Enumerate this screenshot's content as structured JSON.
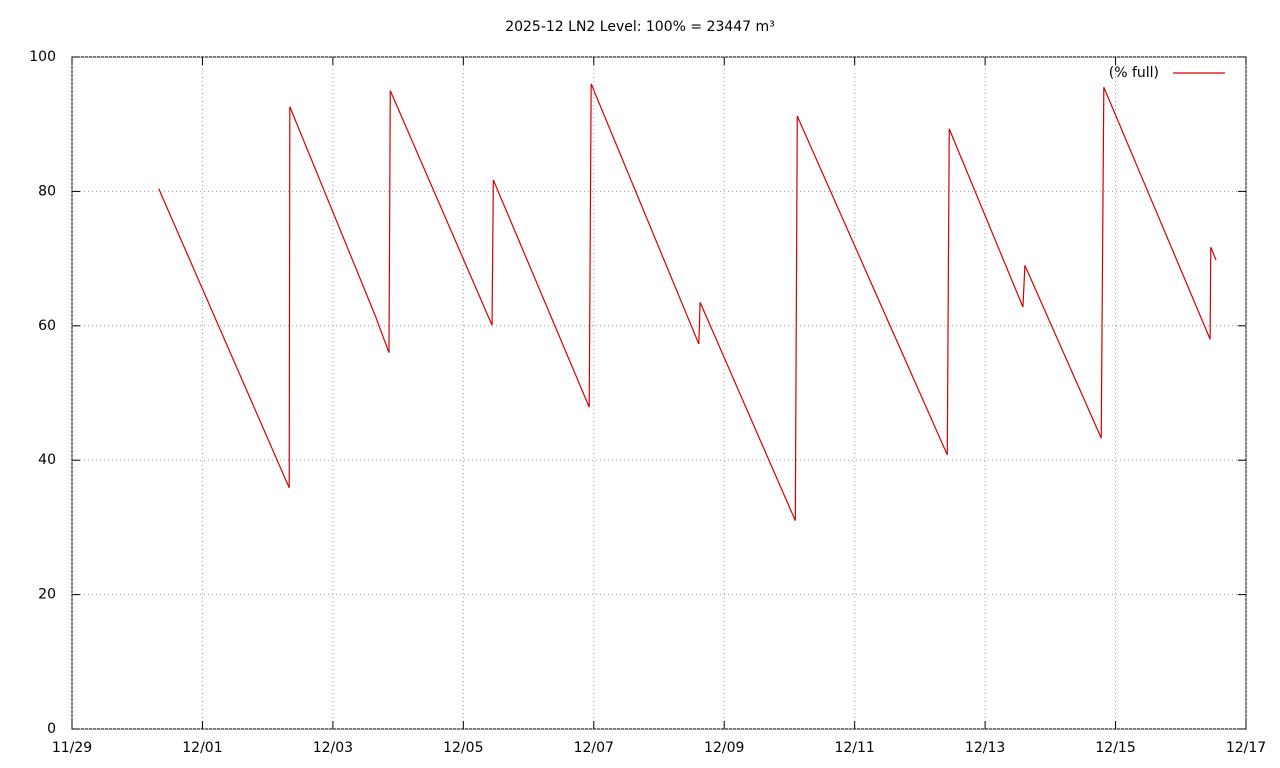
{
  "chart_data": {
    "type": "line",
    "title": "2025-12 LN2 Level: 100% = 23447 m³",
    "xlim": [
      0,
      18
    ],
    "xticks": [
      {
        "value": 0,
        "label": "11/29"
      },
      {
        "value": 2,
        "label": "12/01"
      },
      {
        "value": 4,
        "label": "12/03"
      },
      {
        "value": 6,
        "label": "12/05"
      },
      {
        "value": 8,
        "label": "12/07"
      },
      {
        "value": 10,
        "label": "12/09"
      },
      {
        "value": 12,
        "label": "12/11"
      },
      {
        "value": 14,
        "label": "12/13"
      },
      {
        "value": 16,
        "label": "12/15"
      },
      {
        "value": 18,
        "label": "12/17"
      }
    ],
    "ylim": [
      0,
      100
    ],
    "yticks": [
      0,
      20,
      40,
      60,
      80,
      100
    ],
    "grid": true,
    "legend": "upper right",
    "series": [
      {
        "name": "(% full)",
        "color": "#d40000",
        "x": [
          1.33,
          3.33,
          3.34,
          4.65,
          4.86,
          4.88,
          6.44,
          6.46,
          7.93,
          7.96,
          9.61,
          9.63,
          11.09,
          11.12,
          13.42,
          13.45,
          14.58,
          14.61,
          15.78,
          15.82,
          17.45,
          17.46,
          17.54
        ],
        "values": [
          80.4,
          35.9,
          92.6,
          61.5,
          56.0,
          95.0,
          60.1,
          81.7,
          47.9,
          96.0,
          57.3,
          63.5,
          31.0,
          91.2,
          40.8,
          89.3,
          62.8,
          69.0,
          43.3,
          95.5,
          58.0,
          71.7,
          69.8
        ]
      }
    ]
  }
}
